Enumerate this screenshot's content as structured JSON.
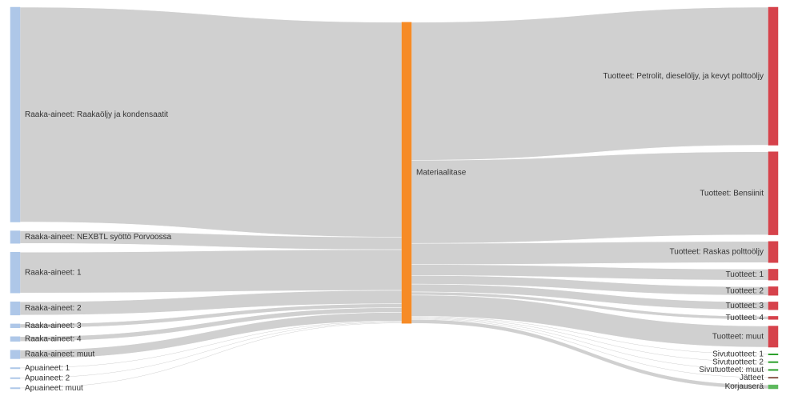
{
  "chart_data": {
    "type": "sankey",
    "nodes": [
      {
        "name": "Raaka-aineet: Raakaöljy ja kondensaatit",
        "color": "#aec7e8"
      },
      {
        "name": "Raaka-aineet: NEXBTL syöttö Porvoossa",
        "color": "#aec7e8"
      },
      {
        "name": "Raaka-aineet: 1",
        "color": "#aec7e8"
      },
      {
        "name": "Raaka-aineet: 2",
        "color": "#aec7e8"
      },
      {
        "name": "Raaka-aineet: 3",
        "color": "#aec7e8"
      },
      {
        "name": "Raaka-aineet: 4",
        "color": "#aec7e8"
      },
      {
        "name": "Raaka-aineet: muut",
        "color": "#aec7e8"
      },
      {
        "name": "Apuaineet: 1",
        "color": "#aec7e8"
      },
      {
        "name": "Apuaineet: 2",
        "color": "#aec7e8"
      },
      {
        "name": "Apuaineet: muut",
        "color": "#aec7e8"
      },
      {
        "name": "Materiaalitase",
        "color": "#f68b26"
      },
      {
        "name": "Tuotteet: Petrolit, dieselöljy, ja kevyt polttoöljy",
        "color": "#d6424b"
      },
      {
        "name": "Tuotteet: Bensiinit",
        "color": "#d6424b"
      },
      {
        "name": "Tuotteet: Raskas polttoöljy",
        "color": "#d6424b"
      },
      {
        "name": "Tuotteet: 1",
        "color": "#d6424b"
      },
      {
        "name": "Tuotteet: 2",
        "color": "#d6424b"
      },
      {
        "name": "Tuotteet: 3",
        "color": "#d6424b"
      },
      {
        "name": "Tuotteet: 4",
        "color": "#d6424b"
      },
      {
        "name": "Tuotteet: muut",
        "color": "#d6424b"
      },
      {
        "name": "Sivutuotteet: 1",
        "color": "#2ca02c"
      },
      {
        "name": "Sivutuotteet: 2",
        "color": "#2ca02c"
      },
      {
        "name": "Sivutuotteet: muut",
        "color": "#2ca02c"
      },
      {
        "name": "Jätteet",
        "color": "#8c564b"
      },
      {
        "name": "Korjauserä",
        "color": "#5cb85c"
      }
    ],
    "links": [
      {
        "source": 0,
        "target": 10,
        "value": 274
      },
      {
        "source": 1,
        "target": 10,
        "value": 16
      },
      {
        "source": 2,
        "target": 10,
        "value": 52
      },
      {
        "source": 3,
        "target": 10,
        "value": 17
      },
      {
        "source": 4,
        "target": 10,
        "value": 5
      },
      {
        "source": 5,
        "target": 10,
        "value": 6
      },
      {
        "source": 6,
        "target": 10,
        "value": 11
      },
      {
        "source": 7,
        "target": 10,
        "value": 1
      },
      {
        "source": 8,
        "target": 10,
        "value": 1
      },
      {
        "source": 9,
        "target": 10,
        "value": 1
      },
      {
        "source": 10,
        "target": 11,
        "value": 176
      },
      {
        "source": 10,
        "target": 12,
        "value": 106
      },
      {
        "source": 10,
        "target": 13,
        "value": 27
      },
      {
        "source": 10,
        "target": 14,
        "value": 14
      },
      {
        "source": 10,
        "target": 15,
        "value": 11
      },
      {
        "source": 10,
        "target": 16,
        "value": 10
      },
      {
        "source": 10,
        "target": 17,
        "value": 4
      },
      {
        "source": 10,
        "target": 18,
        "value": 27
      },
      {
        "source": 10,
        "target": 19,
        "value": 1
      },
      {
        "source": 10,
        "target": 20,
        "value": 1
      },
      {
        "source": 10,
        "target": 21,
        "value": 1
      },
      {
        "source": 10,
        "target": 22,
        "value": 1
      },
      {
        "source": 10,
        "target": 23,
        "value": 5
      }
    ],
    "link_color": "#c8c8c8"
  }
}
